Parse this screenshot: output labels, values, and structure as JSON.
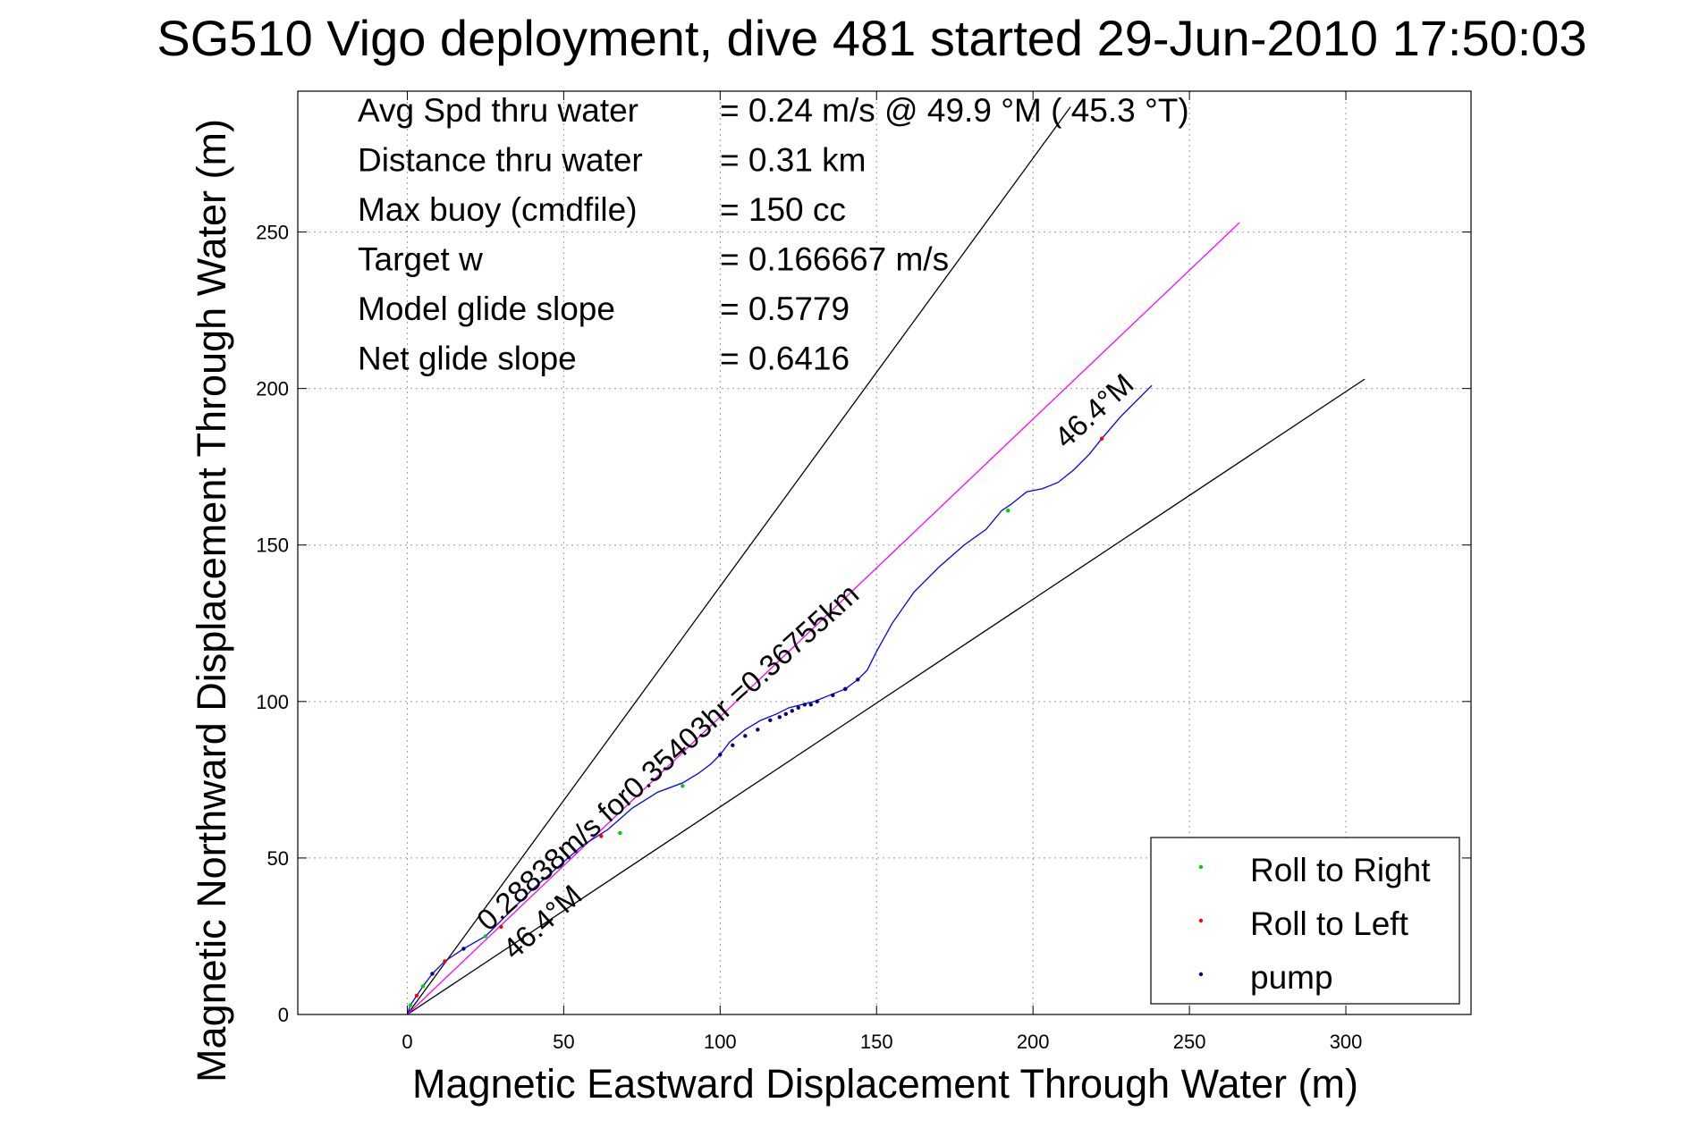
{
  "chart_data": {
    "type": "line",
    "title": "SG510 Vigo deployment, dive 481 started 29-Jun-2010 17:50:03",
    "xlabel": "Magnetic Eastward Displacement Through Water (m)",
    "ylabel": "Magnetic Northward Displacement Through Water (m)",
    "xlim": [
      -35,
      340
    ],
    "ylim": [
      0,
      295
    ],
    "xticks": [
      0,
      50,
      100,
      150,
      200,
      250,
      300
    ],
    "yticks": [
      0,
      50,
      100,
      150,
      200,
      250
    ],
    "xtick_labels": [
      "0",
      "50",
      "100",
      "150",
      "200",
      "250",
      "300"
    ],
    "ytick_labels": [
      "0",
      "50",
      "100",
      "150",
      "200",
      "250"
    ],
    "grid": true,
    "legend_position": "bottom-right",
    "info_lines": [
      {
        "label": "Avg Spd thru water",
        "value": "=  0.24 m/s @  49.9 °M ( 45.3 °T)"
      },
      {
        "label": "Distance thru water",
        "value": "=  0.31 km"
      },
      {
        "label": "Max buoy (cmdfile)",
        "value": "= 150 cc"
      },
      {
        "label": "Target w",
        "value": "= 0.166667 m/s"
      },
      {
        "label": "Model glide slope",
        "value": "= 0.5779"
      },
      {
        "label": "Net glide slope",
        "value": "= 0.6416"
      }
    ],
    "annotations": [
      {
        "text": "0.28838m/s for0.35403hr =0.36755km"
      },
      {
        "text": "46.4°M"
      },
      {
        "text": "46.4°M"
      }
    ],
    "reference_lines": [
      {
        "name": "upper-bound",
        "x": [
          0,
          212
        ],
        "y": [
          0,
          290
        ],
        "color": "#000000"
      },
      {
        "name": "lower-bound",
        "x": [
          0,
          306
        ],
        "y": [
          0,
          203
        ],
        "color": "#000000"
      },
      {
        "name": "current-track",
        "x": [
          0,
          266
        ],
        "y": [
          0,
          253
        ],
        "color": "#ff00ff"
      }
    ],
    "series": [
      {
        "name": "track",
        "color": "#0000ff",
        "x": [
          0,
          1,
          3,
          5,
          8,
          12,
          18,
          25,
          32,
          40,
          48,
          56,
          64,
          72,
          80,
          88,
          93,
          97,
          100,
          103,
          108,
          113,
          118,
          122,
          126,
          130,
          135,
          140,
          144,
          147,
          150,
          155,
          162,
          170,
          178,
          185,
          190,
          193,
          198,
          203,
          208,
          213,
          218,
          222,
          228,
          234,
          238
        ],
        "y": [
          0,
          3,
          6,
          9,
          13,
          17,
          21,
          25,
          32,
          40,
          47,
          54,
          59,
          66,
          71,
          74,
          77,
          80,
          83,
          87,
          91,
          94,
          96,
          98,
          99,
          100,
          102,
          104,
          107,
          110,
          116,
          125,
          135,
          143,
          150,
          155,
          161,
          163,
          167,
          168,
          170,
          174,
          179,
          184,
          191,
          197,
          201
        ]
      }
    ],
    "legend": [
      {
        "label": "Roll to Right",
        "color": "#00cc00"
      },
      {
        "label": "Roll to Left",
        "color": "#ff0000"
      },
      {
        "label": "pump",
        "color": "#000080"
      }
    ],
    "marker_points": {
      "roll_right": {
        "x": [
          1,
          5,
          25,
          56,
          68,
          88,
          192
        ],
        "y": [
          3,
          9,
          25,
          54,
          58,
          73,
          161
        ]
      },
      "roll_left": {
        "x": [
          3,
          12,
          30,
          62,
          140,
          222
        ],
        "y": [
          6,
          17,
          28,
          57,
          104,
          184
        ]
      },
      "pump": {
        "x": [
          8,
          18,
          100,
          104,
          108,
          112,
          116,
          119,
          121,
          123,
          125,
          127,
          129,
          131,
          136,
          140,
          144
        ],
        "y": [
          13,
          21,
          83,
          86,
          89,
          91,
          94,
          95,
          96,
          97,
          98,
          99,
          99,
          100,
          102,
          104,
          107
        ]
      }
    }
  }
}
